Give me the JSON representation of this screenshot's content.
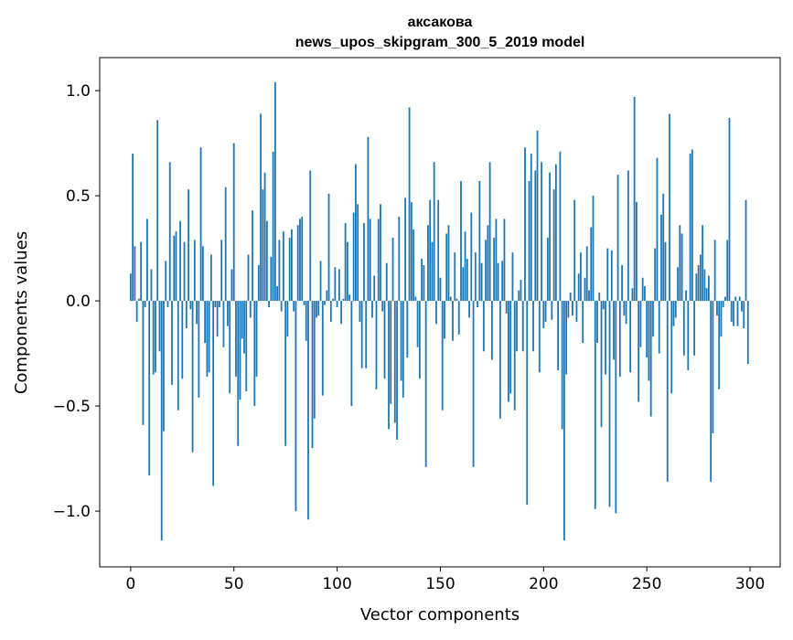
{
  "chart_data": {
    "type": "bar",
    "title": [
      "аксакова",
      "news_upos_skipgram_300_5_2019 model"
    ],
    "xlabel": "Vector components",
    "ylabel": "Components values",
    "xlim": [
      -15,
      314.6
    ],
    "ylim": [
      -1.265,
      1.157
    ],
    "xticks": [
      0,
      50,
      100,
      150,
      200,
      250,
      300
    ],
    "xtick_labels": [
      "0",
      "50",
      "100",
      "150",
      "200",
      "250",
      "300"
    ],
    "yticks": [
      -1.0,
      -0.5,
      0.0,
      0.5,
      1.0
    ],
    "ytick_labels": [
      "−1.0",
      "−0.5",
      "0.0",
      "0.5",
      "1.0"
    ],
    "grid": false,
    "bar_color": "#1f77b4",
    "values": [
      0.13,
      0.7,
      0.26,
      -0.1,
      0.01,
      0.28,
      -0.59,
      -0.03,
      0.39,
      -0.83,
      0.15,
      -0.35,
      -0.34,
      0.86,
      -0.24,
      -1.14,
      -0.62,
      0.19,
      -0.03,
      0.66,
      -0.4,
      0.31,
      0.33,
      -0.52,
      0.38,
      -0.37,
      0.28,
      -0.13,
      0.53,
      -0.04,
      -0.72,
      0.29,
      -0.11,
      -0.46,
      0.73,
      0.26,
      -0.2,
      -0.36,
      -0.34,
      0.22,
      -0.88,
      -0.03,
      -0.17,
      -0.03,
      0.29,
      -0.22,
      0.54,
      -0.12,
      -0.44,
      0.15,
      0.75,
      -0.36,
      -0.69,
      -0.47,
      -0.18,
      -0.25,
      -0.43,
      0.22,
      -0.08,
      0.43,
      -0.5,
      -0.36,
      0.17,
      0.89,
      0.53,
      0.61,
      0.38,
      -0.03,
      0.21,
      0.71,
      1.04,
      0.07,
      0.29,
      -0.05,
      0.33,
      -0.69,
      -0.17,
      0.3,
      0.34,
      -0.05,
      -1.0,
      0.36,
      0.39,
      0.4,
      -0.02,
      -0.19,
      -1.04,
      0.62,
      -0.7,
      -0.56,
      -0.08,
      -0.07,
      0.19,
      -0.45,
      -0.02,
      0.05,
      0.51,
      -0.1,
      0.01,
      0.16,
      -0.03,
      0.15,
      -0.11,
      0.01,
      0.37,
      0.28,
      0.03,
      -0.5,
      0.42,
      0.65,
      0.46,
      -0.1,
      -0.32,
      0.37,
      -0.32,
      0.78,
      0.39,
      -0.08,
      0.12,
      -0.42,
      0.39,
      0.46,
      -0.05,
      -0.37,
      0.18,
      -0.61,
      -0.49,
      0.3,
      -0.58,
      -0.66,
      0.4,
      -0.38,
      -0.46,
      0.49,
      -0.27,
      0.92,
      0.47,
      0.34,
      0.02,
      -0.22,
      -0.37,
      0.2,
      0.17,
      -0.79,
      0.36,
      0.48,
      0.28,
      0.66,
      -0.11,
      0.48,
      0.11,
      -0.52,
      -0.18,
      0.32,
      0.36,
      0.02,
      -0.19,
      0.23,
      0.01,
      -0.16,
      0.57,
      0.16,
      0.33,
      0.2,
      -0.08,
      0.42,
      -0.79,
      0.23,
      -0.03,
      0.57,
      0.18,
      -0.24,
      0.29,
      0.36,
      0.66,
      -0.28,
      0.3,
      0.39,
      0.18,
      -0.56,
      0.19,
      0.39,
      -0.06,
      -0.48,
      -0.44,
      0.23,
      -0.52,
      -0.24,
      0.05,
      0.1,
      -0.24,
      0.73,
      -0.97,
      0.57,
      0.7,
      -0.24,
      0.62,
      0.81,
      -0.34,
      0.66,
      -0.13,
      -0.1,
      0.3,
      0.61,
      -0.09,
      0.53,
      0.65,
      -0.33,
      0.71,
      -0.61,
      -1.14,
      -0.35,
      -0.08,
      0.04,
      -0.07,
      0.48,
      -0.1,
      0.13,
      0.23,
      -0.2,
      0.11,
      0.26,
      0.05,
      0.35,
      0.5,
      -0.99,
      -0.2,
      0.04,
      -0.6,
      -0.04,
      -0.35,
      0.25,
      -0.98,
      0.24,
      -0.28,
      -1.01,
      0.6,
      -0.36,
      0.17,
      -0.07,
      -0.11,
      0.62,
      -0.34,
      0.06,
      0.97,
      0.47,
      -0.48,
      -0.22,
      0.11,
      0.07,
      -0.27,
      -0.38,
      -0.55,
      -0.17,
      0.25,
      0.68,
      -0.25,
      0.41,
      0.51,
      0.28,
      -0.86,
      0.89,
      -0.44,
      -0.12,
      -0.08,
      0.16,
      0.36,
      0.32,
      -0.26,
      0.05,
      -0.33,
      0.7,
      0.72,
      -0.26,
      0.13,
      0.17,
      0.22,
      0.36,
      0.15,
      0.06,
      0.12,
      -0.86,
      -0.63,
      0.29,
      -0.07,
      -0.42,
      -0.17,
      -0.03,
      0.02,
      0.29,
      0.87,
      -0.1,
      -0.12,
      0.02,
      -0.12,
      0.02,
      -0.05,
      -0.13,
      0.48,
      -0.3
    ]
  }
}
